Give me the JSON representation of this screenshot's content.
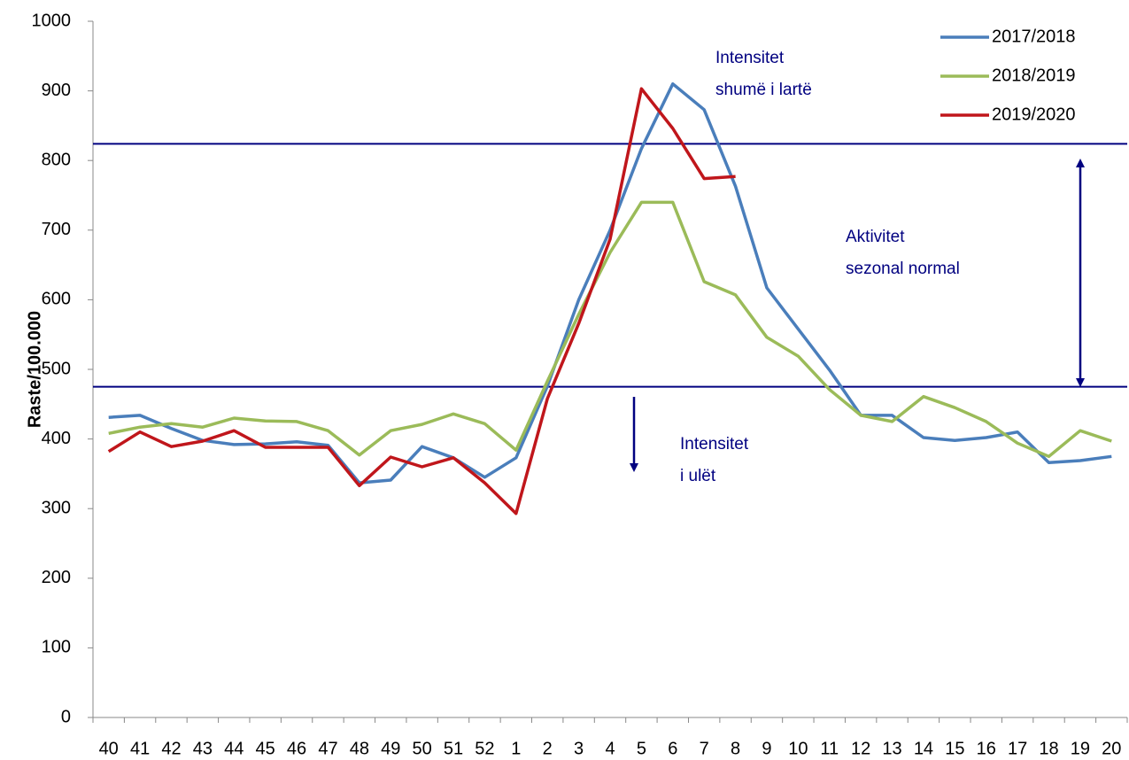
{
  "chart_data": {
    "type": "line",
    "y_label": "Raste/100.000",
    "categories": [
      "40",
      "41",
      "42",
      "43",
      "44",
      "45",
      "46",
      "47",
      "48",
      "49",
      "50",
      "51",
      "52",
      "1",
      "2",
      "3",
      "4",
      "5",
      "6",
      "7",
      "8",
      "9",
      "10",
      "11",
      "12",
      "13",
      "14",
      "15",
      "16",
      "17",
      "18",
      "19",
      "20"
    ],
    "series": [
      {
        "name": "2017/2018",
        "color": "#4a7ebb",
        "values": [
          431,
          434,
          415,
          398,
          392,
          393,
          396,
          391,
          337,
          341,
          389,
          373,
          345,
          373,
          476,
          600,
          700,
          817,
          910,
          873,
          763,
          617,
          558,
          499,
          434,
          434,
          402,
          398,
          402,
          410,
          366,
          369,
          375
        ]
      },
      {
        "name": "2018/2019",
        "color": "#9bbb59",
        "values": [
          408,
          417,
          422,
          417,
          430,
          426,
          425,
          412,
          377,
          412,
          421,
          436,
          422,
          384,
          483,
          579,
          668,
          740,
          740,
          626,
          607,
          546,
          519,
          471,
          434,
          425,
          461,
          445,
          425,
          394,
          375,
          412,
          397
        ]
      },
      {
        "name": "2019/2020",
        "color": "#c0161b",
        "values": [
          382,
          410,
          389,
          397,
          412,
          388,
          388,
          388,
          333,
          374,
          360,
          373,
          337,
          293,
          458,
          566,
          687,
          903,
          846,
          774,
          777,
          null,
          null,
          null,
          null,
          null,
          null,
          null,
          null,
          null,
          null,
          null,
          null
        ]
      }
    ],
    "reference_lines": [
      824,
      475
    ],
    "reference_color": "#000080",
    "annotations": [
      {
        "lines": [
          "Intensitet",
          "shumë i lartë"
        ]
      },
      {
        "lines": [
          "Aktivitet",
          "sezonal normal"
        ]
      },
      {
        "lines": [
          "Intensitet",
          "i ulët"
        ]
      }
    ],
    "ylim": [
      0,
      1000
    ],
    "yticks": [
      0,
      100,
      200,
      300,
      400,
      500,
      600,
      700,
      800,
      900,
      1000
    ],
    "grid": false,
    "legend": "top-right"
  }
}
